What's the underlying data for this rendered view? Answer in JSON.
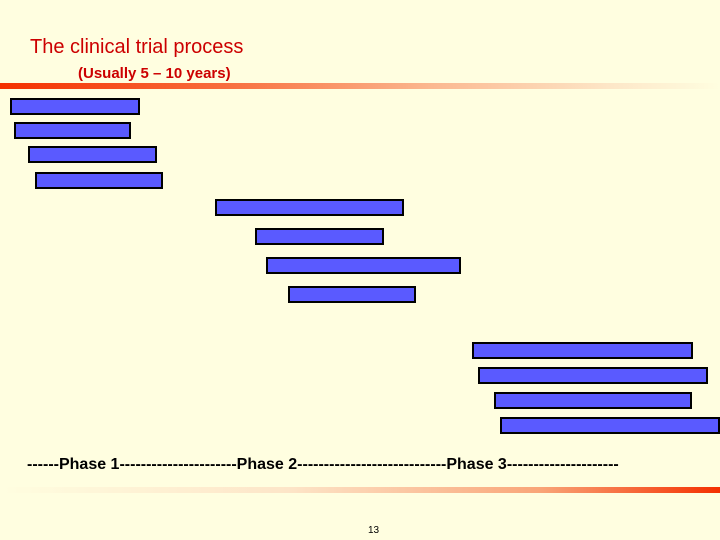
{
  "slide": {
    "title": "The clinical trial process",
    "subtitle": "(Usually 5 – 10 years)",
    "phase_line": "------Phase 1----------------------Phase 2----------------------------Phase 3---------------------",
    "page_number": "13"
  },
  "colors": {
    "background": "#fffee0",
    "title": "#cc0000",
    "bar_fill": "#5a5aff",
    "bar_border": "#000000",
    "accent_rule": "#f43000"
  }
}
